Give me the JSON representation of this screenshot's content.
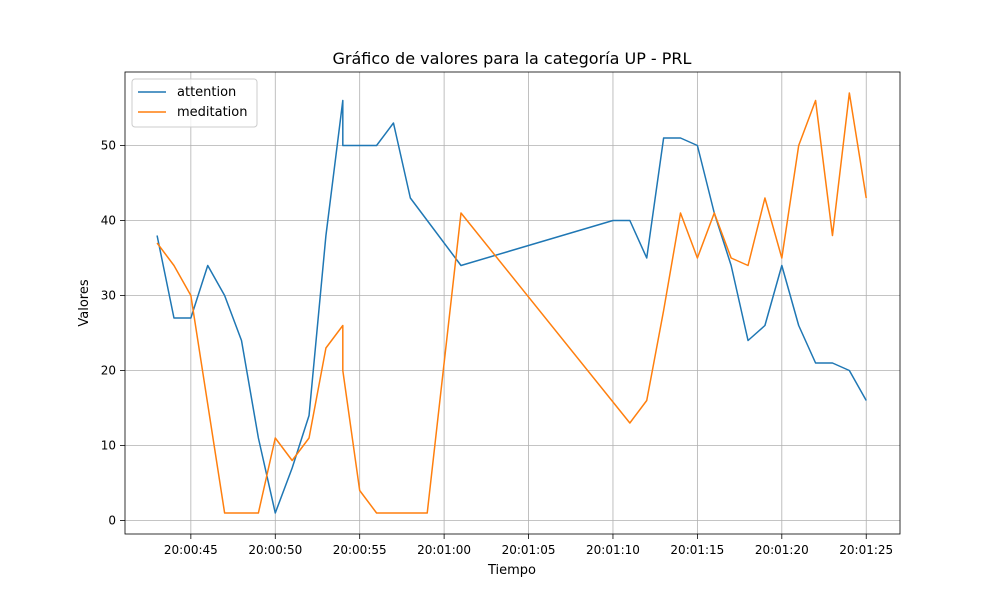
{
  "chart_data": {
    "type": "line",
    "title": "Gráfico de valores para la categoría UP - PRL",
    "xlabel": "Tiempo",
    "ylabel": "Valores",
    "x_unit": "time",
    "x_ticks": [
      "20:00:45",
      "20:00:50",
      "20:00:55",
      "20:01:00",
      "20:01:05",
      "20:01:10",
      "20:01:15",
      "20:01:20",
      "20:01:25"
    ],
    "y_ticks": [
      0,
      10,
      20,
      30,
      40,
      50
    ],
    "xlim": [
      "20:00:41.1",
      "20:01:27.0"
    ],
    "ylim": [
      -1.8,
      59.8
    ],
    "grid": true,
    "legend_position": "top-left",
    "series": [
      {
        "name": "attention",
        "color": "#1f77b4",
        "points": [
          [
            "20:00:43",
            38
          ],
          [
            "20:00:44",
            27
          ],
          [
            "20:00:45",
            27
          ],
          [
            "20:00:46",
            34
          ],
          [
            "20:00:47",
            30
          ],
          [
            "20:00:48",
            24
          ],
          [
            "20:00:49",
            11
          ],
          [
            "20:00:50",
            1
          ],
          [
            "20:00:51",
            7
          ],
          [
            "20:00:52",
            14
          ],
          [
            "20:00:53",
            38
          ],
          [
            "20:00:54",
            56
          ],
          [
            "20:00:54",
            50
          ],
          [
            "20:00:55",
            50
          ],
          [
            "20:00:56",
            50
          ],
          [
            "20:00:57",
            53
          ],
          [
            "20:00:58",
            43
          ],
          [
            "20:01:01",
            34
          ],
          [
            "20:01:10",
            40
          ],
          [
            "20:01:11",
            40
          ],
          [
            "20:01:12",
            35
          ],
          [
            "20:01:13",
            51
          ],
          [
            "20:01:14",
            51
          ],
          [
            "20:01:15",
            50
          ],
          [
            "20:01:16",
            41
          ],
          [
            "20:01:17",
            34
          ],
          [
            "20:01:18",
            24
          ],
          [
            "20:01:19",
            26
          ],
          [
            "20:01:20",
            34
          ],
          [
            "20:01:21",
            26
          ],
          [
            "20:01:22",
            21
          ],
          [
            "20:01:23",
            21
          ],
          [
            "20:01:24",
            20
          ],
          [
            "20:01:25",
            16
          ]
        ]
      },
      {
        "name": "meditation",
        "color": "#ff7f0e",
        "points": [
          [
            "20:00:43",
            37
          ],
          [
            "20:00:44",
            34
          ],
          [
            "20:00:45",
            30
          ],
          [
            "20:00:47",
            1
          ],
          [
            "20:00:49",
            1
          ],
          [
            "20:00:50",
            11
          ],
          [
            "20:00:51",
            8
          ],
          [
            "20:00:52",
            11
          ],
          [
            "20:00:53",
            23
          ],
          [
            "20:00:54",
            26
          ],
          [
            "20:00:54",
            20
          ],
          [
            "20:00:55",
            4
          ],
          [
            "20:00:56",
            1
          ],
          [
            "20:00:59",
            1
          ],
          [
            "20:01:01",
            41
          ],
          [
            "20:01:11",
            13
          ],
          [
            "20:01:12",
            16
          ],
          [
            "20:01:13",
            28
          ],
          [
            "20:01:14",
            41
          ],
          [
            "20:01:15",
            35
          ],
          [
            "20:01:16",
            41
          ],
          [
            "20:01:17",
            35
          ],
          [
            "20:01:18",
            34
          ],
          [
            "20:01:19",
            43
          ],
          [
            "20:01:20",
            35
          ],
          [
            "20:01:21",
            50
          ],
          [
            "20:01:22",
            56
          ],
          [
            "20:01:23",
            38
          ],
          [
            "20:01:24",
            57
          ],
          [
            "20:01:25",
            43
          ]
        ]
      }
    ]
  }
}
